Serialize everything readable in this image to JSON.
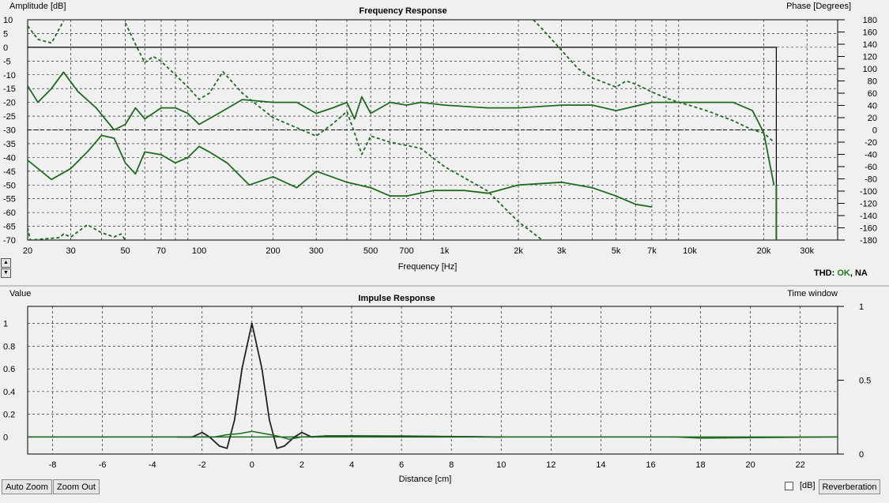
{
  "freq_panel": {
    "title": "Frequency Response",
    "y_left_label": "Amplitude [dB]",
    "y_right_label": "Phase [Degrees]",
    "x_label": "Frequency [Hz]"
  },
  "imp_panel": {
    "title": "Impulse Response",
    "y_left_label": "Value",
    "y_right_label": "Time window",
    "x_label": "Distance [cm]"
  },
  "thd": {
    "label": "THD:",
    "ok": "OK",
    "na": "NA"
  },
  "buttons": {
    "auto_zoom": "Auto Zoom",
    "zoom_out": "Zoom Out",
    "reverberation": "Reverberation",
    "db_label": "[dB]"
  },
  "colors": {
    "curve": "#1e6b1e",
    "impulse": "#222222",
    "grid": "#000000"
  },
  "chart_data": [
    {
      "type": "line",
      "title": "Frequency Response",
      "xlabel": "Frequency [Hz]",
      "ylabel": "Amplitude [dB]",
      "y2label": "Phase [Degrees]",
      "xscale": "log",
      "xlim": [
        20,
        40000
      ],
      "ylim": [
        -70,
        10
      ],
      "y2lim": [
        -180,
        180
      ],
      "x_ticks": [
        20,
        30,
        50,
        70,
        100,
        200,
        300,
        500,
        700,
        1000,
        2000,
        3000,
        5000,
        7000,
        10000,
        20000,
        30000
      ],
      "x_tick_labels": [
        "20",
        "30",
        "50",
        "70",
        "100",
        "200",
        "300",
        "500",
        "700",
        "1k",
        "2k",
        "3k",
        "5k",
        "7k",
        "10k",
        "20k",
        "30k"
      ],
      "y_ticks": [
        10,
        5,
        0,
        -5,
        -10,
        -15,
        -20,
        -25,
        -30,
        -35,
        -40,
        -45,
        -50,
        -55,
        -60,
        -65,
        -70
      ],
      "y2_ticks": [
        180,
        160,
        140,
        120,
        100,
        80,
        60,
        40,
        20,
        0,
        -20,
        -40,
        -60,
        -80,
        -100,
        -120,
        -140,
        -160,
        -180
      ],
      "grid": true,
      "series": [
        {
          "style": "solid",
          "axis": "left",
          "x": [
            20,
            22,
            25,
            28,
            32,
            38,
            45,
            50,
            55,
            60,
            70,
            80,
            90,
            100,
            120,
            150,
            200,
            250,
            300,
            350,
            400,
            430,
            460,
            500,
            600,
            700,
            800,
            1000,
            1500,
            2000,
            3000,
            4000,
            5000,
            7000,
            10000,
            12000,
            15000,
            18000,
            20000,
            22000
          ],
          "y": [
            -14,
            -20,
            -15,
            -9,
            -16,
            -22,
            -30,
            -28,
            -22,
            -26,
            -22,
            -22,
            -24,
            -28,
            -24,
            -19,
            -20,
            -20,
            -24,
            -22,
            -20,
            -26,
            -18,
            -24,
            -20,
            -21,
            -20,
            -21,
            -22,
            -22,
            -21,
            -21,
            -23,
            -20,
            -20,
            -20,
            -20,
            -23,
            -31,
            -50
          ]
        },
        {
          "style": "solid",
          "axis": "left",
          "x": [
            20,
            25,
            30,
            35,
            40,
            45,
            50,
            55,
            60,
            70,
            80,
            90,
            100,
            110,
            130,
            160,
            200,
            250,
            300,
            400,
            500,
            600,
            700,
            900,
            1200,
            1500,
            2000,
            3000,
            4000,
            5000,
            6000,
            7000
          ],
          "y": [
            -41,
            -48,
            -44,
            -38,
            -32,
            -33,
            -42,
            -46,
            -38,
            -39,
            -42,
            -40,
            -36,
            -38,
            -42,
            -50,
            -47,
            -51,
            -45,
            -49,
            -51,
            -54,
            -54,
            -52,
            -52,
            -53,
            -50,
            -49,
            -51,
            -54,
            -57,
            -58
          ]
        },
        {
          "style": "dashed",
          "axis": "right",
          "x": [
            20,
            22,
            25,
            28
          ],
          "y": [
            170,
            148,
            142,
            178
          ]
        },
        {
          "style": "dashed",
          "axis": "right",
          "x": [
            50,
            55,
            60,
            65,
            70,
            80,
            90,
            100,
            110,
            125,
            150,
            200,
            300,
            350,
            400,
            430,
            460,
            500,
            600,
            800,
            1000,
            1500,
            2000,
            2500
          ],
          "y": [
            175,
            140,
            110,
            120,
            112,
            90,
            70,
            50,
            60,
            95,
            60,
            20,
            -10,
            10,
            30,
            -5,
            -40,
            -10,
            -20,
            -30,
            -60,
            -100,
            -150,
            -180
          ]
        },
        {
          "style": "dashed",
          "axis": "right",
          "x": [
            2300,
            2500,
            3000,
            3500,
            4000,
            5000,
            5500,
            6000,
            7000,
            8000,
            9000,
            10000,
            12000,
            15000,
            18000,
            20000,
            22000
          ],
          "y": [
            180,
            165,
            130,
            100,
            85,
            70,
            80,
            75,
            62,
            52,
            45,
            40,
            30,
            15,
            0,
            -5,
            -20
          ]
        },
        {
          "style": "dashed",
          "axis": "right",
          "x": [
            20,
            20.5,
            27,
            28,
            30,
            35,
            40,
            45,
            48,
            50
          ],
          "y": [
            -160,
            -180,
            -176,
            -170,
            -175,
            -155,
            -168,
            -175,
            -170,
            -180
          ]
        }
      ]
    },
    {
      "type": "line",
      "title": "Impulse Response",
      "xlabel": "Distance [cm]",
      "ylabel": "Value",
      "y2label": "Time window",
      "xlim": [
        -9,
        23.5
      ],
      "ylim": [
        -0.15,
        1.15
      ],
      "y2lim": [
        0,
        1
      ],
      "x_ticks": [
        -8,
        -6,
        -4,
        -2,
        0,
        2,
        4,
        6,
        8,
        10,
        12,
        14,
        16,
        18,
        20,
        22
      ],
      "y_ticks": [
        1,
        0.8,
        0.6,
        0.4,
        0.2,
        0
      ],
      "y2_ticks": [
        1,
        0.5,
        0
      ],
      "grid": true,
      "series": [
        {
          "style": "solid",
          "axis": "left",
          "x": [
            -3,
            -2.4,
            -2,
            -1.7,
            -1.3,
            -1.0,
            -0.7,
            -0.4,
            0,
            0.4,
            0.7,
            1.0,
            1.3,
            1.7,
            2.0,
            2.4,
            3,
            4,
            10
          ],
          "y": [
            0,
            0.0,
            0.04,
            0.0,
            -0.08,
            -0.1,
            0.15,
            0.6,
            1.0,
            0.6,
            0.15,
            -0.1,
            -0.08,
            0.0,
            0.04,
            0.0,
            0.01,
            0.01,
            0.0
          ]
        },
        {
          "style": "solid",
          "axis": "left",
          "x": [
            -9,
            -3,
            -1.5,
            -1,
            -0.5,
            0,
            0.5,
            1,
            1.5,
            2,
            3,
            6,
            10,
            17,
            18,
            23.5
          ],
          "y": [
            0,
            0,
            0.0,
            0.02,
            0.03,
            0.05,
            0.03,
            0.01,
            -0.02,
            0.0,
            0.01,
            0.01,
            0.0,
            0.0,
            -0.01,
            0
          ]
        }
      ]
    }
  ]
}
